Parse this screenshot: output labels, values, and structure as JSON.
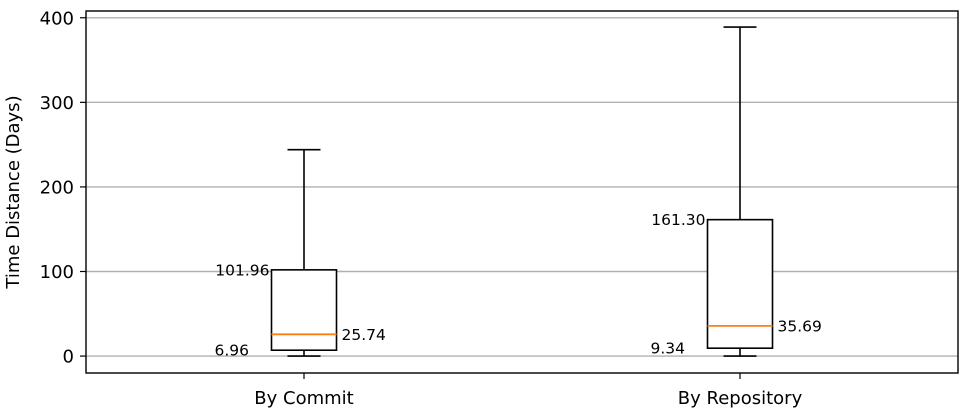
{
  "chart_data": {
    "type": "box",
    "title": "",
    "xlabel": "",
    "ylabel": "Time Distance (Days)",
    "ylim": [
      -20,
      408
    ],
    "yticks": [
      0,
      100,
      200,
      300,
      400
    ],
    "grid": "y",
    "categories": [
      "By Commit",
      "By Repository"
    ],
    "boxes": [
      {
        "category": "By Commit",
        "whisker_low": 0,
        "q1": 6.96,
        "median": 25.74,
        "q3": 101.96,
        "whisker_high": 244,
        "labels": {
          "q1": "6.96",
          "median": "25.74",
          "q3": "101.96"
        }
      },
      {
        "category": "By Repository",
        "whisker_low": 0,
        "q1": 9.34,
        "median": 35.69,
        "q3": 161.3,
        "whisker_high": 389,
        "labels": {
          "q1": "9.34",
          "median": "35.69",
          "q3": "161.30"
        }
      }
    ],
    "colors": {
      "median": "#ff7f0e",
      "box": "#000000",
      "grid": "#b0b0b0"
    }
  }
}
